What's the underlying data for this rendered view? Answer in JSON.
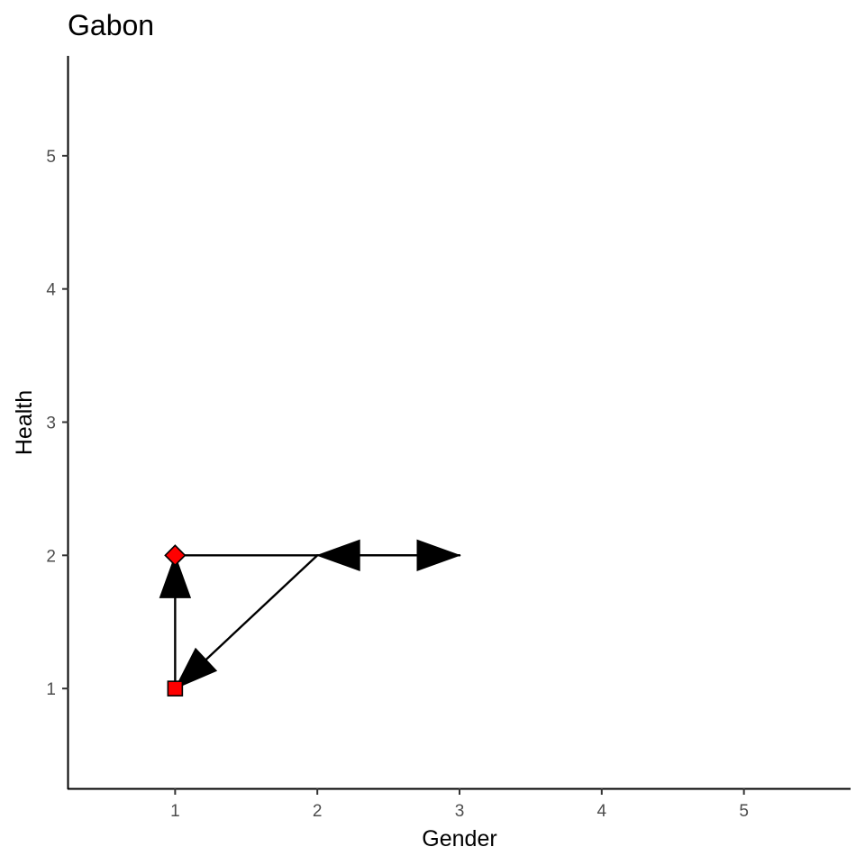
{
  "chart_data": {
    "type": "scatter",
    "title": "Gabon",
    "xlabel": "Gender",
    "ylabel": "Health",
    "xlim": [
      0.25,
      5.75
    ],
    "ylim": [
      0.25,
      5.75
    ],
    "xticks": [
      1,
      2,
      3,
      4,
      5
    ],
    "yticks": [
      1,
      2,
      3,
      4,
      5
    ],
    "grid": false,
    "legend": "none",
    "points": [
      {
        "x": 1,
        "y": 2,
        "shape": "diamond",
        "color": "#ff0000"
      },
      {
        "x": 1,
        "y": 1,
        "shape": "square",
        "color": "#ff0000"
      }
    ],
    "arrows": [
      {
        "from": [
          1,
          2
        ],
        "to": [
          3,
          2
        ]
      },
      {
        "from": [
          3,
          2
        ],
        "to": [
          2,
          2
        ]
      },
      {
        "from": [
          2,
          2
        ],
        "to": [
          1,
          1
        ]
      },
      {
        "from": [
          1,
          1
        ],
        "to": [
          1,
          2
        ]
      }
    ],
    "colors": {
      "axis": "#000000",
      "arrow": "#000000",
      "marker_fill": "#ff0000",
      "marker_stroke": "#000000"
    }
  }
}
